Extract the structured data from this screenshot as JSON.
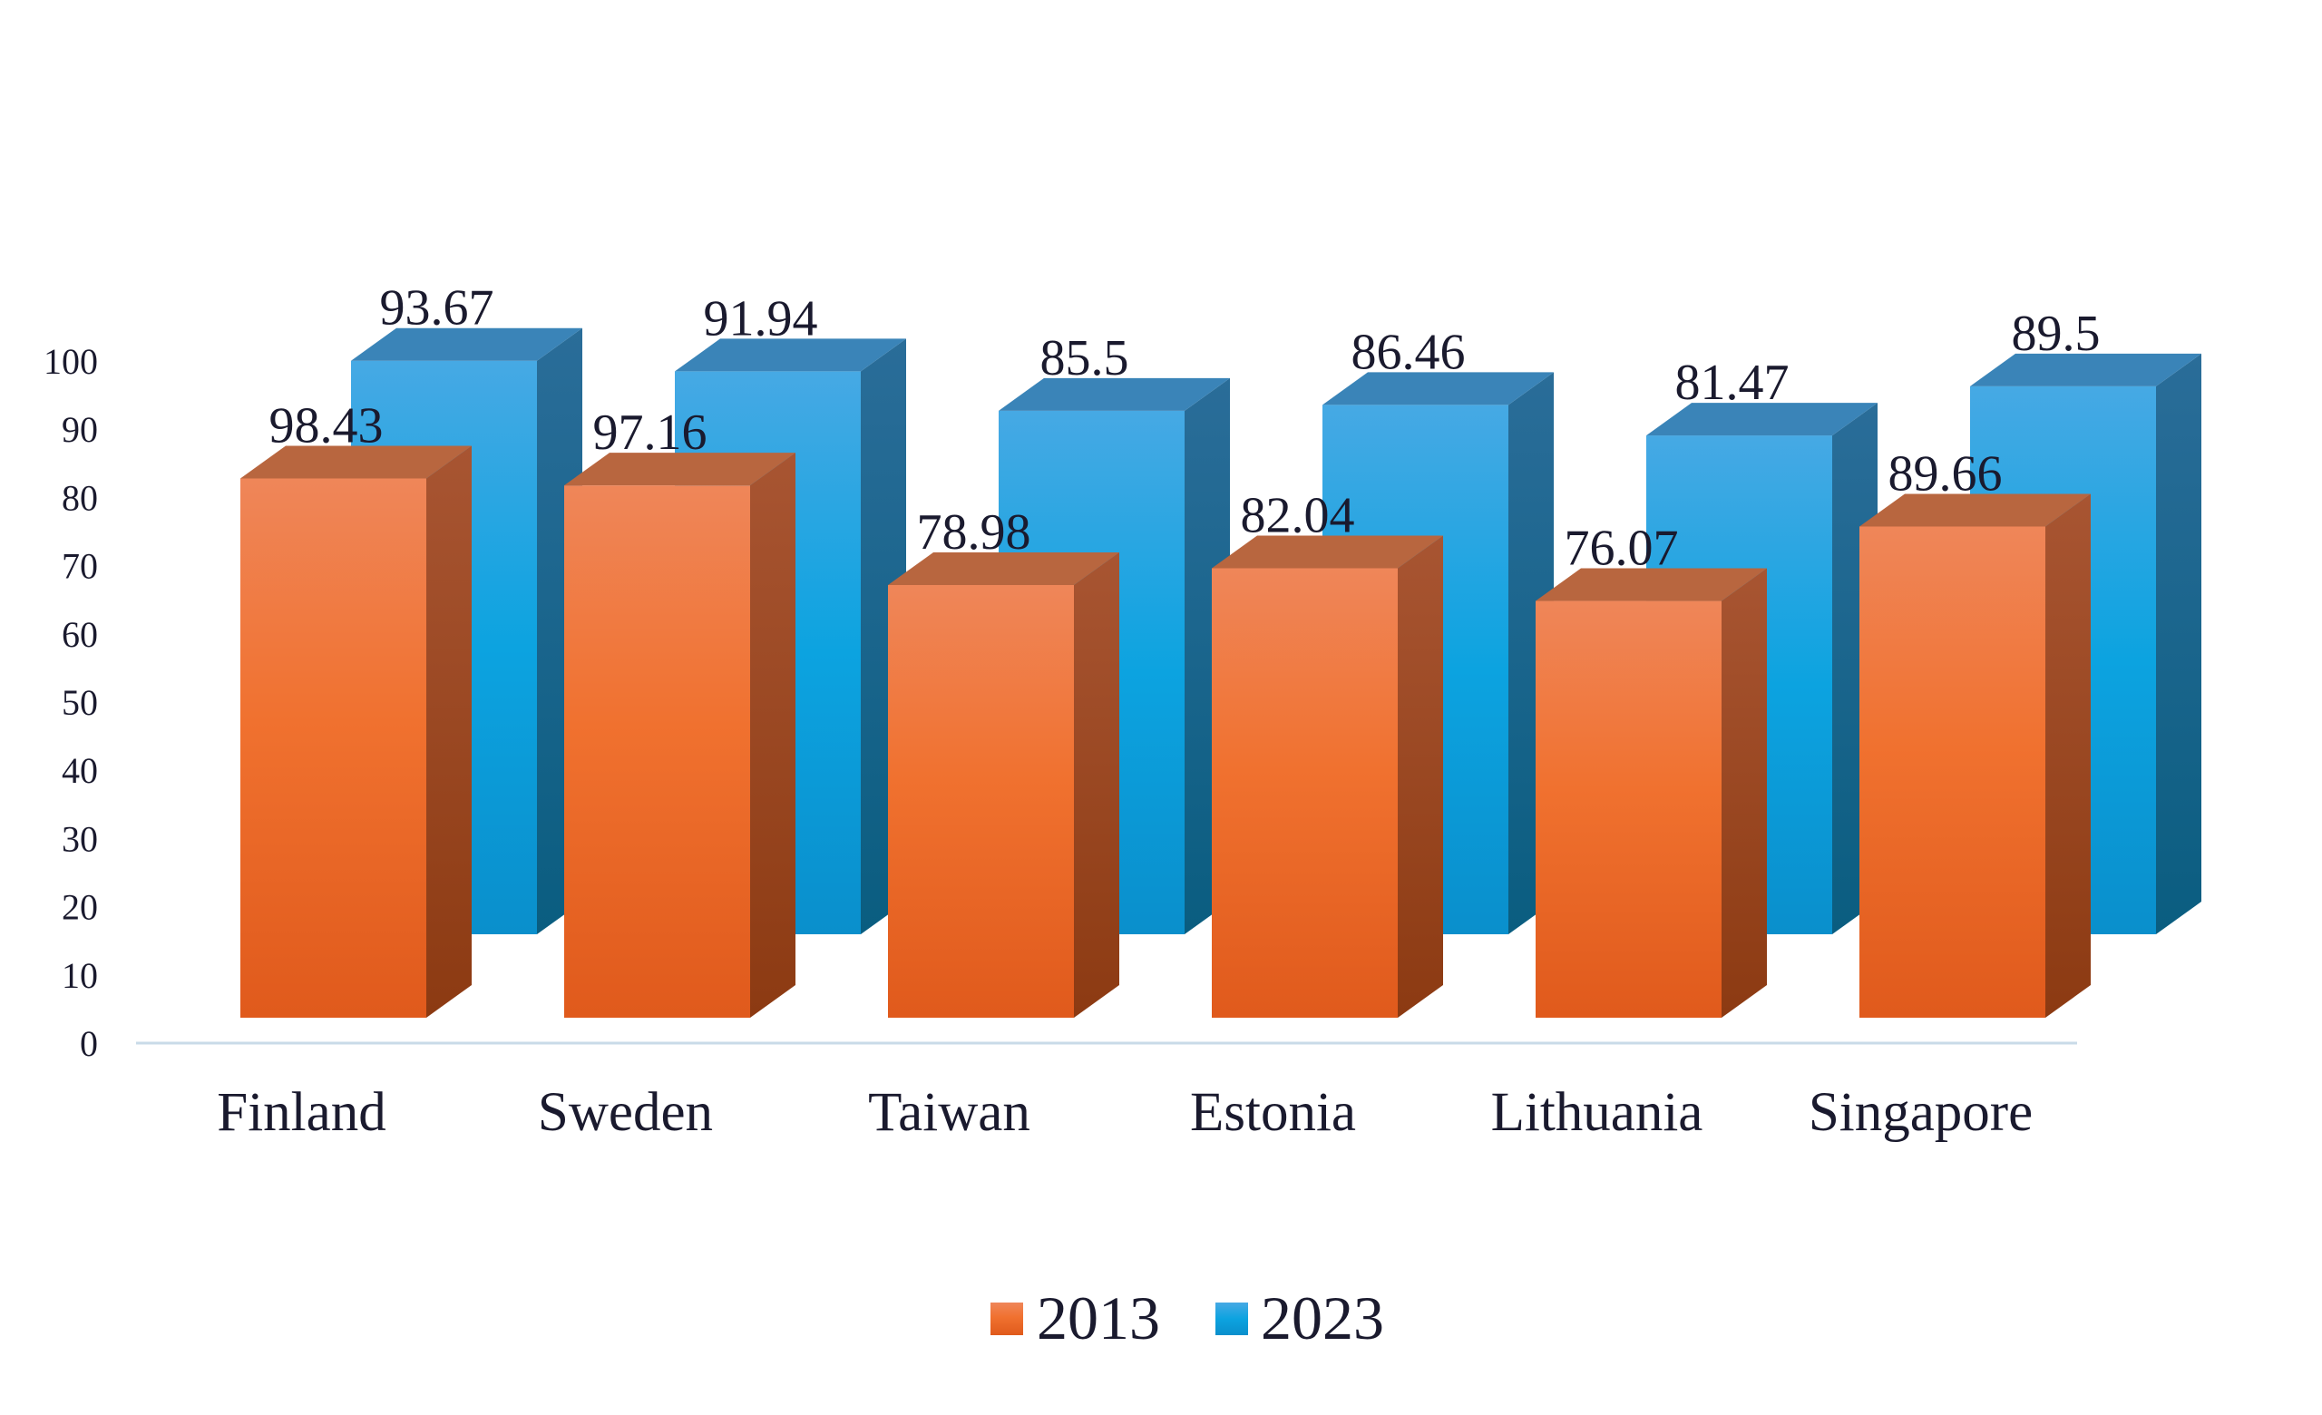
{
  "chart_data": {
    "type": "bar",
    "categories": [
      "Finland",
      "Sweden",
      "Taiwan",
      "Estonia",
      "Lithuania",
      "Singapore"
    ],
    "series": [
      {
        "name": "2013",
        "values": [
          98.43,
          97.16,
          78.98,
          82.04,
          76.07,
          89.66
        ],
        "color": "#ee6f2d"
      },
      {
        "name": "2023",
        "values": [
          93.67,
          91.94,
          85.5,
          86.46,
          81.47,
          89.5
        ],
        "color": "#1ea6e0"
      }
    ],
    "y_ticks": [
      "0",
      "10",
      "20",
      "30",
      "40",
      "50",
      "60",
      "70",
      "80",
      "90",
      "100"
    ],
    "ylim": [
      0,
      100
    ],
    "grid": false,
    "legend_position": "bottom",
    "style": "3d-clustered-column",
    "title": "",
    "xlabel": "",
    "ylabel": ""
  }
}
